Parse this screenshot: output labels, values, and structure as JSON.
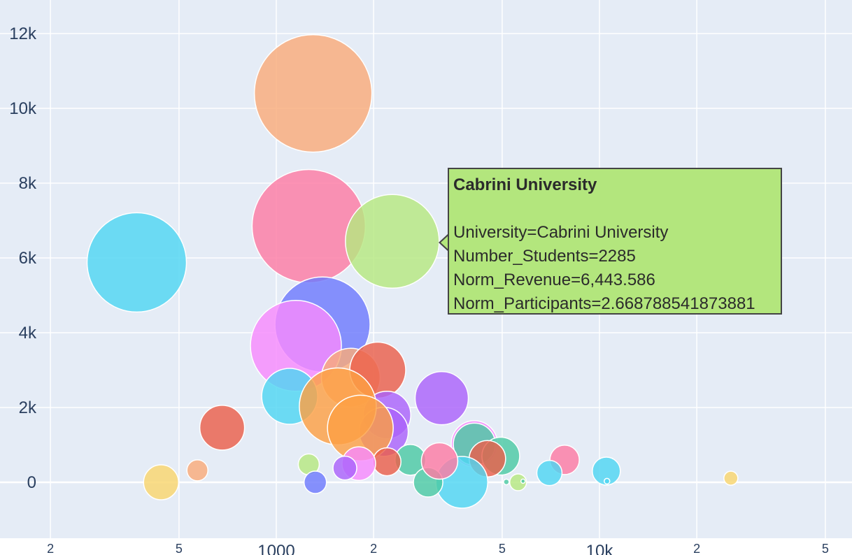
{
  "chart_data": {
    "type": "scatter",
    "subtype": "bubble",
    "x_scale": "log",
    "xlim": [
      180,
      52000
    ],
    "ylim": [
      -1400,
      12800
    ],
    "grid": true,
    "plot_background": "#e5ecf6",
    "x_ticks": [
      {
        "value": 200,
        "label": "2"
      },
      {
        "value": 500,
        "label": "5"
      },
      {
        "value": 1000,
        "label": "1000"
      },
      {
        "value": 2000,
        "label": "2"
      },
      {
        "value": 5000,
        "label": "5"
      },
      {
        "value": 10000,
        "label": "10k"
      },
      {
        "value": 20000,
        "label": "2"
      },
      {
        "value": 50000,
        "label": "5"
      }
    ],
    "y_ticks": [
      {
        "value": 12000,
        "label": "12k"
      },
      {
        "value": 10000,
        "label": "10k"
      },
      {
        "value": 8000,
        "label": "8k"
      },
      {
        "value": 6000,
        "label": "6k"
      },
      {
        "value": 4000,
        "label": "4k"
      },
      {
        "value": 2000,
        "label": "2k"
      },
      {
        "value": 0,
        "label": "0"
      }
    ],
    "points": [
      {
        "x": 1300,
        "y": 10400,
        "r": 84,
        "color": "#f9ab7a"
      },
      {
        "x": 1260,
        "y": 6850,
        "r": 81,
        "color": "#fc7ba3"
      },
      {
        "x": 2285,
        "y": 6444,
        "r": 67,
        "color": "#b6e880"
      },
      {
        "x": 370,
        "y": 5880,
        "r": 71,
        "color": "#4fd6f2"
      },
      {
        "x": 1390,
        "y": 4220,
        "r": 68,
        "color": "#6e7afc"
      },
      {
        "x": 1150,
        "y": 3650,
        "r": 65,
        "color": "#f68afc"
      },
      {
        "x": 1700,
        "y": 2800,
        "r": 42,
        "color": "#f9ab7a"
      },
      {
        "x": 2060,
        "y": 3000,
        "r": 40,
        "color": "#ea5f4a"
      },
      {
        "x": 1100,
        "y": 2300,
        "r": 40,
        "color": "#4fd6f2"
      },
      {
        "x": 3250,
        "y": 2250,
        "r": 38,
        "color": "#ab63fa"
      },
      {
        "x": 2200,
        "y": 1800,
        "r": 34,
        "color": "#ab63fa"
      },
      {
        "x": 2150,
        "y": 1350,
        "r": 35,
        "color": "#ab63fa"
      },
      {
        "x": 1550,
        "y": 2030,
        "r": 55,
        "color": "#fca044"
      },
      {
        "x": 1820,
        "y": 1450,
        "r": 47,
        "color": "#fca044"
      },
      {
        "x": 680,
        "y": 1460,
        "r": 32,
        "color": "#ea5f4a"
      },
      {
        "x": 4100,
        "y": 1030,
        "r": 33,
        "color": "#f68afc"
      },
      {
        "x": 4100,
        "y": 1020,
        "r": 30,
        "color": "#4cc9a3"
      },
      {
        "x": 4950,
        "y": 700,
        "r": 27,
        "color": "#4cc9a3"
      },
      {
        "x": 4500,
        "y": 630,
        "r": 26,
        "color": "#ea5f4a"
      },
      {
        "x": 7800,
        "y": 600,
        "r": 21,
        "color": "#fc7ba3"
      },
      {
        "x": 3750,
        "y": 0,
        "r": 37,
        "color": "#4fd6f2"
      },
      {
        "x": 2600,
        "y": 600,
        "r": 22,
        "color": "#4cc9a3"
      },
      {
        "x": 2950,
        "y": 0,
        "r": 21,
        "color": "#4cc9a3"
      },
      {
        "x": 3200,
        "y": 570,
        "r": 26,
        "color": "#fc7ba3"
      },
      {
        "x": 2200,
        "y": 550,
        "r": 20,
        "color": "#ea5f4a"
      },
      {
        "x": 1800,
        "y": 500,
        "r": 24,
        "color": "#f68afc"
      },
      {
        "x": 1630,
        "y": 380,
        "r": 17,
        "color": "#ab63fa"
      },
      {
        "x": 1260,
        "y": 480,
        "r": 15,
        "color": "#b6e880"
      },
      {
        "x": 1320,
        "y": 0,
        "r": 16,
        "color": "#6e7afc"
      },
      {
        "x": 440,
        "y": 0,
        "r": 25,
        "color": "#f9d56e"
      },
      {
        "x": 570,
        "y": 320,
        "r": 15,
        "color": "#f9ab7a"
      },
      {
        "x": 7000,
        "y": 250,
        "r": 18,
        "color": "#4fd6f2"
      },
      {
        "x": 10500,
        "y": 300,
        "r": 20,
        "color": "#4fd6f2"
      },
      {
        "x": 10550,
        "y": 30,
        "r": 4,
        "color": "#4fd6f2"
      },
      {
        "x": 5600,
        "y": 0,
        "r": 12,
        "color": "#b6e880"
      },
      {
        "x": 5150,
        "y": 10,
        "r": 4,
        "color": "#4cc9a3"
      },
      {
        "x": 5800,
        "y": 30,
        "r": 3,
        "color": "#4cc9a3"
      },
      {
        "x": 25500,
        "y": 110,
        "r": 10,
        "color": "#f9d56e"
      }
    ],
    "hover": {
      "title": "Cabrini University",
      "lines": [
        "University=Cabrini University",
        "Number_Students=2285",
        "Norm_Revenue=6,443.586",
        "Norm_Participants=2.668788541873881"
      ],
      "x": 2285,
      "y": 6444,
      "color": "#b3e67d"
    }
  }
}
